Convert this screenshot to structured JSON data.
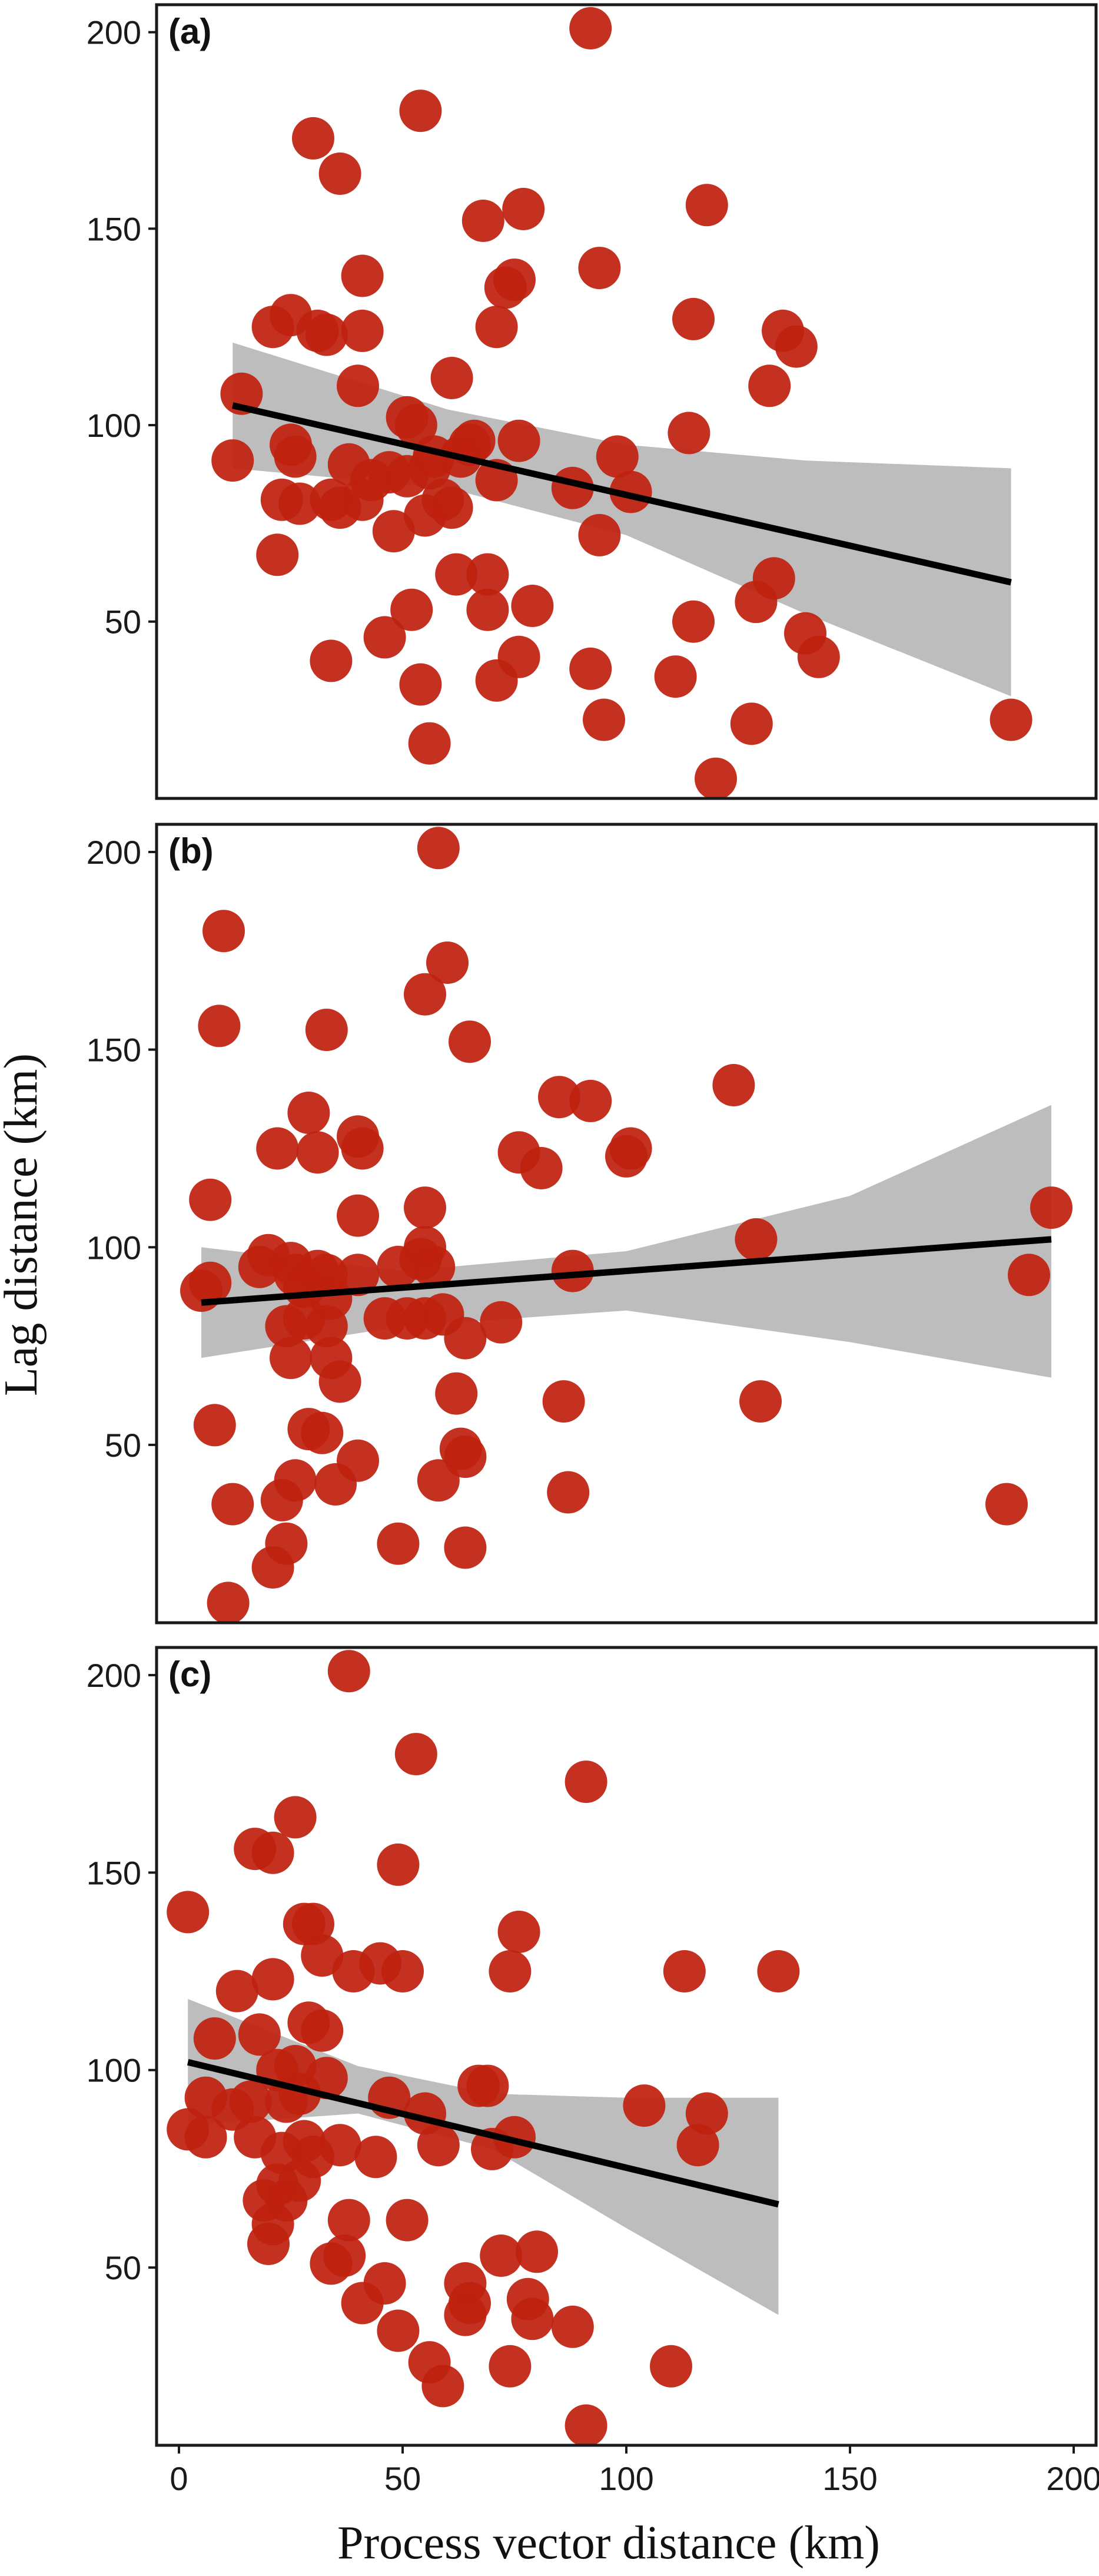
{
  "colors": {
    "points": "#c0210f",
    "point_opacity": 0.93,
    "fit_line": "#000000",
    "confidence_band": "#bdbdbd",
    "panel_border": "#1a1a1a"
  },
  "chart_data": {
    "type": "scatter",
    "xlabel": "Process vector distance (km)",
    "ylabel": "Lag distance (km)",
    "xlim": [
      -5,
      205
    ],
    "x_ticks": [
      0,
      50,
      100,
      150,
      200
    ],
    "y_ticks": [
      50,
      100,
      150,
      200
    ],
    "grid": false,
    "legend": "none",
    "panels": [
      {
        "label": "(a)",
        "ylim": [
          5,
          207
        ],
        "fit": {
          "x": [
            12,
            186
          ],
          "y": [
            105,
            60
          ]
        },
        "band": {
          "x": [
            12,
            60,
            100,
            140,
            186
          ],
          "upper": [
            121,
            104,
            95,
            91,
            89
          ],
          "lower": [
            89,
            84,
            72,
            52,
            31
          ]
        },
        "points": [
          [
            92,
            201
          ],
          [
            54,
            180
          ],
          [
            30,
            173
          ],
          [
            36,
            164
          ],
          [
            118,
            156
          ],
          [
            77,
            155
          ],
          [
            68,
            152
          ],
          [
            94,
            140
          ],
          [
            41,
            138
          ],
          [
            75,
            137
          ],
          [
            73,
            135
          ],
          [
            21,
            125
          ],
          [
            25,
            128
          ],
          [
            31,
            124
          ],
          [
            33,
            123
          ],
          [
            41,
            124
          ],
          [
            71,
            125
          ],
          [
            115,
            127
          ],
          [
            135,
            124
          ],
          [
            138,
            120
          ],
          [
            40,
            110
          ],
          [
            61,
            112
          ],
          [
            132,
            110
          ],
          [
            14,
            108
          ],
          [
            51,
            102
          ],
          [
            53,
            100
          ],
          [
            114,
            98
          ],
          [
            66,
            96
          ],
          [
            76,
            96
          ],
          [
            12,
            91
          ],
          [
            25,
            95
          ],
          [
            26,
            92
          ],
          [
            57,
            92
          ],
          [
            63,
            92
          ],
          [
            65,
            95
          ],
          [
            98,
            92
          ],
          [
            38,
            90
          ],
          [
            43,
            86
          ],
          [
            47,
            88
          ],
          [
            51,
            87
          ],
          [
            56,
            89
          ],
          [
            71,
            86
          ],
          [
            88,
            84
          ],
          [
            101,
            83
          ],
          [
            23,
            81
          ],
          [
            27,
            80
          ],
          [
            34,
            81
          ],
          [
            36,
            79
          ],
          [
            41,
            81
          ],
          [
            59,
            81
          ],
          [
            61,
            79
          ],
          [
            55,
            77
          ],
          [
            48,
            73
          ],
          [
            94,
            72
          ],
          [
            22,
            67
          ],
          [
            62,
            62
          ],
          [
            69,
            62
          ],
          [
            133,
            61
          ],
          [
            129,
            55
          ],
          [
            69,
            53
          ],
          [
            79,
            54
          ],
          [
            52,
            53
          ],
          [
            115,
            50
          ],
          [
            46,
            46
          ],
          [
            140,
            47
          ],
          [
            34,
            40
          ],
          [
            76,
            41
          ],
          [
            143,
            41
          ],
          [
            92,
            38
          ],
          [
            54,
            34
          ],
          [
            71,
            35
          ],
          [
            111,
            36
          ],
          [
            95,
            25
          ],
          [
            128,
            24
          ],
          [
            56,
            19
          ],
          [
            186,
            25
          ],
          [
            120,
            10
          ]
        ]
      },
      {
        "label": "(b)",
        "ylim": [
          5,
          207
        ],
        "fit": {
          "x": [
            5,
            195
          ],
          "y": [
            86,
            102
          ]
        },
        "band": {
          "x": [
            5,
            50,
            100,
            150,
            195
          ],
          "upper": [
            100,
            94,
            99,
            113,
            136
          ],
          "lower": [
            72,
            80,
            84,
            76,
            67
          ]
        },
        "points": [
          [
            58,
            201
          ],
          [
            10,
            180
          ],
          [
            60,
            172
          ],
          [
            55,
            164
          ],
          [
            9,
            156
          ],
          [
            33,
            155
          ],
          [
            65,
            152
          ],
          [
            124,
            141
          ],
          [
            85,
            138
          ],
          [
            92,
            137
          ],
          [
            29,
            134
          ],
          [
            40,
            128
          ],
          [
            41,
            125
          ],
          [
            22,
            125
          ],
          [
            31,
            124
          ],
          [
            76,
            124
          ],
          [
            101,
            125
          ],
          [
            100,
            123
          ],
          [
            81,
            120
          ],
          [
            7,
            112
          ],
          [
            40,
            108
          ],
          [
            55,
            110
          ],
          [
            195,
            110
          ],
          [
            129,
            102
          ],
          [
            55,
            100
          ],
          [
            54,
            97
          ],
          [
            57,
            95
          ],
          [
            5,
            89
          ],
          [
            7,
            91
          ],
          [
            20,
            98
          ],
          [
            18,
            95
          ],
          [
            25,
            96
          ],
          [
            26,
            93
          ],
          [
            31,
            94
          ],
          [
            33,
            93
          ],
          [
            40,
            93
          ],
          [
            49,
            95
          ],
          [
            88,
            94
          ],
          [
            190,
            93
          ],
          [
            28,
            90
          ],
          [
            34,
            87
          ],
          [
            24,
            80
          ],
          [
            28,
            82
          ],
          [
            33,
            80
          ],
          [
            46,
            82
          ],
          [
            51,
            82
          ],
          [
            55,
            82
          ],
          [
            59,
            83
          ],
          [
            64,
            77
          ],
          [
            72,
            81
          ],
          [
            25,
            72
          ],
          [
            34,
            72
          ],
          [
            36,
            66
          ],
          [
            62,
            63
          ],
          [
            86,
            61
          ],
          [
            130,
            61
          ],
          [
            8,
            55
          ],
          [
            29,
            54
          ],
          [
            32,
            53
          ],
          [
            63,
            49
          ],
          [
            64,
            47
          ],
          [
            40,
            46
          ],
          [
            26,
            41
          ],
          [
            35,
            40
          ],
          [
            58,
            41
          ],
          [
            87,
            38
          ],
          [
            185,
            35
          ],
          [
            12,
            35
          ],
          [
            23,
            36
          ],
          [
            24,
            25
          ],
          [
            49,
            25
          ],
          [
            64,
            24
          ],
          [
            21,
            19
          ],
          [
            11,
            10
          ]
        ]
      },
      {
        "label": "(c)",
        "ylim": [
          5,
          207
        ],
        "fit": {
          "x": [
            2,
            134
          ],
          "y": [
            102,
            66
          ]
        },
        "band": {
          "x": [
            2,
            40,
            70,
            100,
            134
          ],
          "upper": [
            118,
            101,
            94,
            93,
            93
          ],
          "lower": [
            86,
            89,
            80,
            60,
            38
          ]
        },
        "points": [
          [
            38,
            201
          ],
          [
            53,
            180
          ],
          [
            91,
            173
          ],
          [
            26,
            164
          ],
          [
            17,
            156
          ],
          [
            21,
            155
          ],
          [
            49,
            152
          ],
          [
            2,
            140
          ],
          [
            28,
            137
          ],
          [
            30,
            137
          ],
          [
            76,
            135
          ],
          [
            32,
            129
          ],
          [
            45,
            127
          ],
          [
            39,
            125
          ],
          [
            50,
            125
          ],
          [
            74,
            125
          ],
          [
            113,
            125
          ],
          [
            134,
            125
          ],
          [
            21,
            123
          ],
          [
            13,
            120
          ],
          [
            29,
            112
          ],
          [
            18,
            109
          ],
          [
            32,
            110
          ],
          [
            8,
            108
          ],
          [
            22,
            100
          ],
          [
            26,
            101
          ],
          [
            33,
            98
          ],
          [
            6,
            93
          ],
          [
            12,
            90
          ],
          [
            16,
            92
          ],
          [
            24,
            92
          ],
          [
            27,
            94
          ],
          [
            47,
            93
          ],
          [
            67,
            96
          ],
          [
            69,
            96
          ],
          [
            104,
            91
          ],
          [
            118,
            89
          ],
          [
            2,
            85
          ],
          [
            6,
            83
          ],
          [
            17,
            83
          ],
          [
            28,
            82
          ],
          [
            36,
            81
          ],
          [
            44,
            78
          ],
          [
            55,
            89
          ],
          [
            58,
            81
          ],
          [
            70,
            80
          ],
          [
            75,
            83
          ],
          [
            116,
            81
          ],
          [
            23,
            79
          ],
          [
            30,
            78
          ],
          [
            27,
            72
          ],
          [
            22,
            71
          ],
          [
            19,
            67
          ],
          [
            24,
            67
          ],
          [
            21,
            61
          ],
          [
            38,
            62
          ],
          [
            51,
            62
          ],
          [
            20,
            56
          ],
          [
            37,
            53
          ],
          [
            34,
            51
          ],
          [
            72,
            53
          ],
          [
            80,
            54
          ],
          [
            46,
            46
          ],
          [
            64,
            46
          ],
          [
            65,
            41
          ],
          [
            78,
            42
          ],
          [
            41,
            41
          ],
          [
            64,
            38
          ],
          [
            49,
            34
          ],
          [
            79,
            37
          ],
          [
            88,
            35
          ],
          [
            56,
            26
          ],
          [
            74,
            25
          ],
          [
            110,
            25
          ],
          [
            59,
            20
          ],
          [
            91,
            10
          ]
        ]
      }
    ]
  }
}
